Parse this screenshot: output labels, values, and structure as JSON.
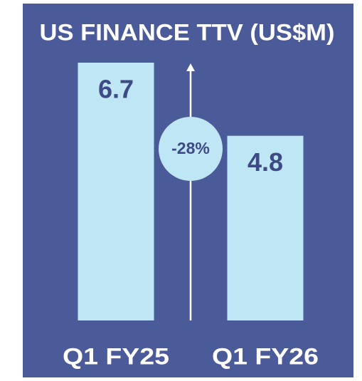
{
  "chart_data": {
    "type": "bar",
    "title": "US FINANCE TTV (US$M)",
    "categories": [
      "Q1 FY25",
      "Q1 FY26"
    ],
    "values": [
      6.7,
      4.8
    ],
    "color": "#bfe6f4",
    "ylim": [
      0,
      6.7
    ],
    "annotation": "-28%"
  }
}
